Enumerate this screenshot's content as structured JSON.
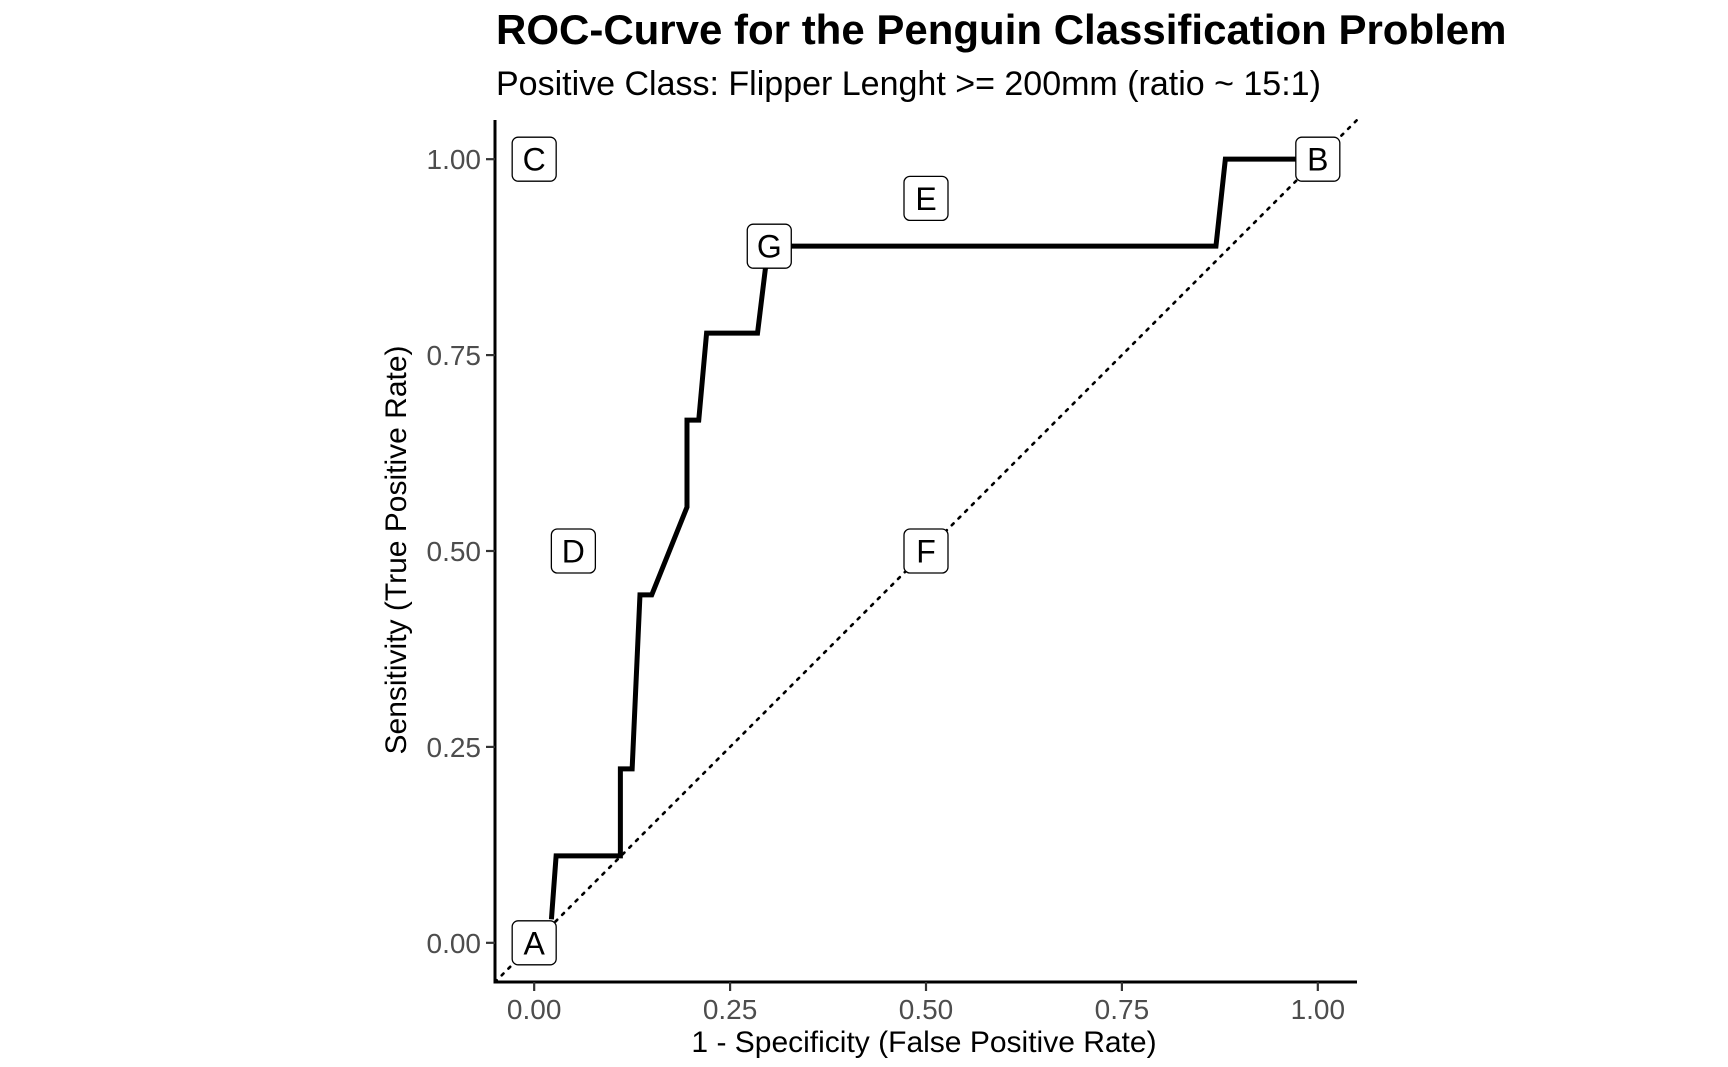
{
  "chart_data": {
    "type": "line",
    "title": "ROC-Curve for the Penguin Classification Problem",
    "subtitle": "Positive Class: Flipper Lenght >= 200mm (ratio ~ 15:1)",
    "xlabel": "1 - Specificity (False Positive Rate)",
    "ylabel": "Sensitivity (True Positive Rate)",
    "xlim": [
      -0.05,
      1.05
    ],
    "ylim": [
      -0.05,
      1.05
    ],
    "xticks": [
      0,
      0.25,
      0.5,
      0.75,
      1
    ],
    "yticks": [
      0,
      0.25,
      0.5,
      0.75,
      1
    ],
    "xtick_labels": [
      "0.00",
      "0.25",
      "0.50",
      "0.75",
      "1.00"
    ],
    "ytick_labels": [
      "0.00",
      "0.25",
      "0.50",
      "0.75",
      "1.00"
    ],
    "grid": false,
    "series": [
      {
        "style": "solid",
        "x": [
          0.022,
          0.028,
          0.11,
          0.11,
          0.125,
          0.135,
          0.15,
          0.195,
          0.195,
          0.21,
          0.22,
          0.285,
          0.295,
          0.305,
          0.87,
          0.882,
          1.0
        ],
        "y": [
          0.03,
          0.111,
          0.111,
          0.222,
          0.222,
          0.444,
          0.444,
          0.556,
          0.667,
          0.667,
          0.778,
          0.778,
          0.86,
          0.889,
          0.889,
          1.0,
          1.0
        ]
      },
      {
        "style": "dotted",
        "x": [
          -0.05,
          1.05
        ],
        "y": [
          -0.05,
          1.05
        ]
      }
    ],
    "annotations": [
      {
        "label": "A",
        "x": 0.0,
        "y": 0.0
      },
      {
        "label": "B",
        "x": 1.0,
        "y": 1.0
      },
      {
        "label": "C",
        "x": 0.0,
        "y": 1.0
      },
      {
        "label": "D",
        "x": 0.05,
        "y": 0.5
      },
      {
        "label": "E",
        "x": 0.5,
        "y": 0.95
      },
      {
        "label": "F",
        "x": 0.5,
        "y": 0.5
      },
      {
        "label": "G",
        "x": 0.3,
        "y": 0.889
      }
    ]
  }
}
